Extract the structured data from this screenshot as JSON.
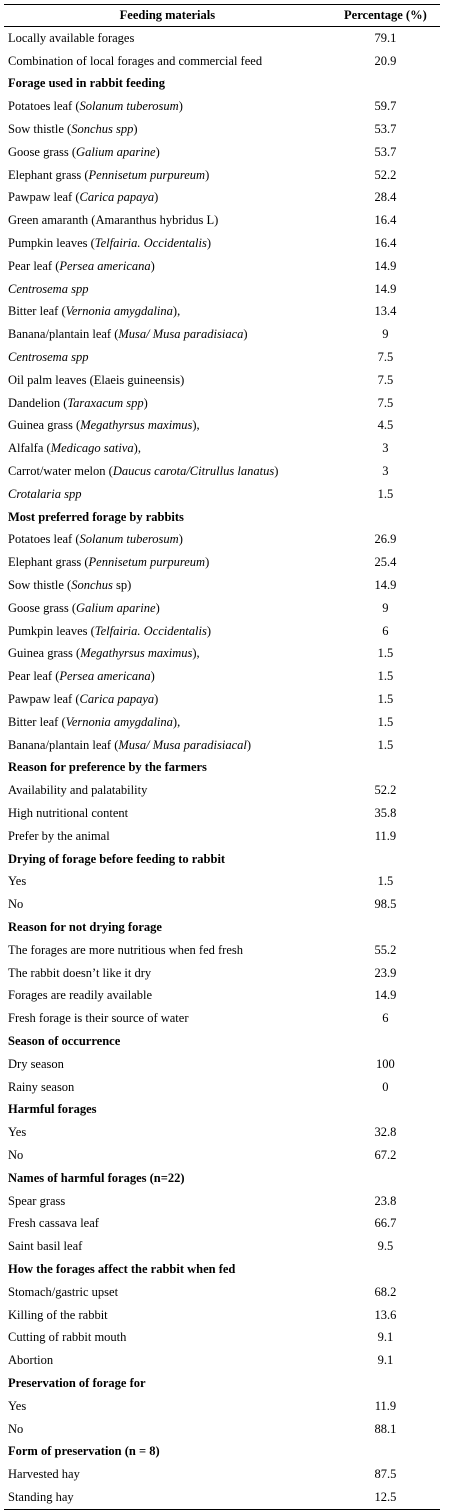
{
  "table": {
    "headers": [
      "Feeding materials",
      "Percentage (%)"
    ],
    "rows": [
      {
        "type": "item",
        "parts": [
          {
            "t": "Locally available forages"
          }
        ],
        "value": "79.1"
      },
      {
        "type": "item",
        "parts": [
          {
            "t": "Combination of local forages and commercial feed"
          }
        ],
        "value": "20.9"
      },
      {
        "type": "section",
        "parts": [
          {
            "t": "Forage used in rabbit feeding"
          }
        ],
        "value": ""
      },
      {
        "type": "item",
        "parts": [
          {
            "t": "Potatoes leaf ("
          },
          {
            "t": "Solanum tuberosum",
            "i": true
          },
          {
            "t": ")"
          }
        ],
        "value": "59.7"
      },
      {
        "type": "item",
        "parts": [
          {
            "t": "Sow thistle ("
          },
          {
            "t": "Sonchus spp",
            "i": true
          },
          {
            "t": ")"
          }
        ],
        "value": "53.7"
      },
      {
        "type": "item",
        "parts": [
          {
            "t": "Goose grass ("
          },
          {
            "t": "Galium aparine",
            "i": true
          },
          {
            "t": ")"
          }
        ],
        "value": "53.7"
      },
      {
        "type": "item",
        "parts": [
          {
            "t": "Elephant grass ("
          },
          {
            "t": "Pennisetum purpureum",
            "i": true
          },
          {
            "t": ")"
          }
        ],
        "value": "52.2"
      },
      {
        "type": "item",
        "parts": [
          {
            "t": "Pawpaw leaf ("
          },
          {
            "t": "Carica papaya",
            "i": true
          },
          {
            "t": ")"
          }
        ],
        "value": "28.4"
      },
      {
        "type": "item",
        "parts": [
          {
            "t": "Green amaranth (Amaranthus hybridus L)"
          }
        ],
        "value": "16.4"
      },
      {
        "type": "item",
        "parts": [
          {
            "t": "Pumpkin leaves ("
          },
          {
            "t": "Telfairia. Occidentalis",
            "i": true
          },
          {
            "t": ")"
          }
        ],
        "value": "16.4"
      },
      {
        "type": "item",
        "parts": [
          {
            "t": "Pear leaf ("
          },
          {
            "t": "Persea americana",
            "i": true
          },
          {
            "t": ")"
          }
        ],
        "value": "14.9"
      },
      {
        "type": "item",
        "parts": [
          {
            "t": "Centrosema spp",
            "i": true
          }
        ],
        "value": "14.9"
      },
      {
        "type": "item",
        "parts": [
          {
            "t": "Bitter leaf ("
          },
          {
            "t": "Vernonia amygdalina",
            "i": true
          },
          {
            "t": "),"
          }
        ],
        "value": "13.4"
      },
      {
        "type": "item",
        "parts": [
          {
            "t": "Banana/plantain leaf ("
          },
          {
            "t": "Musa/ Musa paradisiaca",
            "i": true
          },
          {
            "t": ")"
          }
        ],
        "value": "9"
      },
      {
        "type": "item",
        "parts": [
          {
            "t": "Centrosema spp",
            "i": true
          }
        ],
        "value": "7.5"
      },
      {
        "type": "item",
        "parts": [
          {
            "t": "Oil palm leaves (Elaeis guineensis)"
          }
        ],
        "value": "7.5"
      },
      {
        "type": "item",
        "parts": [
          {
            "t": "Dandelion ("
          },
          {
            "t": "Taraxacum spp",
            "i": true
          },
          {
            "t": ")"
          }
        ],
        "value": "7.5"
      },
      {
        "type": "item",
        "parts": [
          {
            "t": "Guinea grass ("
          },
          {
            "t": "Megathyrsus maximus",
            "i": true
          },
          {
            "t": "),"
          }
        ],
        "value": "4.5"
      },
      {
        "type": "item",
        "parts": [
          {
            "t": "Alfalfa ("
          },
          {
            "t": "Medicago sativa",
            "i": true
          },
          {
            "t": "),"
          }
        ],
        "value": "3"
      },
      {
        "type": "item",
        "parts": [
          {
            "t": "Carrot/water melon ("
          },
          {
            "t": "Daucus carota/Citrullus lanatus",
            "i": true
          },
          {
            "t": ")"
          }
        ],
        "value": "3"
      },
      {
        "type": "item",
        "parts": [
          {
            "t": "Crotalaria spp",
            "i": true
          }
        ],
        "value": "1.5"
      },
      {
        "type": "section",
        "parts": [
          {
            "t": "Most preferred forage by rabbits"
          }
        ],
        "value": ""
      },
      {
        "type": "item",
        "parts": [
          {
            "t": "Potatoes leaf ("
          },
          {
            "t": "Solanum tuberosum",
            "i": true
          },
          {
            "t": ")"
          }
        ],
        "value": "26.9"
      },
      {
        "type": "item",
        "parts": [
          {
            "t": "Elephant grass ("
          },
          {
            "t": "Pennisetum purpureum",
            "i": true
          },
          {
            "t": ")"
          }
        ],
        "value": "25.4"
      },
      {
        "type": "item",
        "parts": [
          {
            "t": "Sow thistle ("
          },
          {
            "t": "Sonchus",
            "i": true
          },
          {
            "t": " sp)"
          }
        ],
        "value": "14.9"
      },
      {
        "type": "item",
        "parts": [
          {
            "t": "Goose grass ("
          },
          {
            "t": "Galium aparine",
            "i": true
          },
          {
            "t": ")"
          }
        ],
        "value": "9"
      },
      {
        "type": "item",
        "parts": [
          {
            "t": "Pumkpin leaves ("
          },
          {
            "t": "Telfairia. Occidentalis",
            "i": true
          },
          {
            "t": ")"
          }
        ],
        "value": "6"
      },
      {
        "type": "item",
        "parts": [
          {
            "t": "Guinea grass ("
          },
          {
            "t": "Megathyrsus maximus",
            "i": true
          },
          {
            "t": "),"
          }
        ],
        "value": "1.5"
      },
      {
        "type": "item",
        "parts": [
          {
            "t": "Pear leaf ("
          },
          {
            "t": "Persea americana",
            "i": true
          },
          {
            "t": ")"
          }
        ],
        "value": "1.5"
      },
      {
        "type": "item",
        "parts": [
          {
            "t": "Pawpaw leaf ("
          },
          {
            "t": "Carica papaya",
            "i": true
          },
          {
            "t": ")"
          }
        ],
        "value": "1.5"
      },
      {
        "type": "item",
        "parts": [
          {
            "t": "Bitter leaf ("
          },
          {
            "t": "Vernonia amygdalina",
            "i": true
          },
          {
            "t": "),"
          }
        ],
        "value": "1.5"
      },
      {
        "type": "item",
        "parts": [
          {
            "t": "Banana/plantain leaf ("
          },
          {
            "t": "Musa/ Musa paradisiacal",
            "i": true
          },
          {
            "t": ")"
          }
        ],
        "value": "1.5"
      },
      {
        "type": "section",
        "parts": [
          {
            "t": "Reason for preference by the farmers"
          }
        ],
        "value": ""
      },
      {
        "type": "item",
        "parts": [
          {
            "t": "Availability and palatability"
          }
        ],
        "value": "52.2"
      },
      {
        "type": "item",
        "parts": [
          {
            "t": "High nutritional content"
          }
        ],
        "value": "35.8"
      },
      {
        "type": "item",
        "parts": [
          {
            "t": "Prefer by the animal"
          }
        ],
        "value": "11.9"
      },
      {
        "type": "section",
        "parts": [
          {
            "t": "Drying of forage before feeding to rabbit"
          }
        ],
        "value": ""
      },
      {
        "type": "item",
        "parts": [
          {
            "t": "Yes"
          }
        ],
        "value": "1.5"
      },
      {
        "type": "item",
        "parts": [
          {
            "t": "No"
          }
        ],
        "value": "98.5"
      },
      {
        "type": "section",
        "parts": [
          {
            "t": "Reason for not drying forage"
          }
        ],
        "value": ""
      },
      {
        "type": "item",
        "parts": [
          {
            "t": "The forages are more nutritious when fed fresh"
          }
        ],
        "value": "55.2"
      },
      {
        "type": "item",
        "parts": [
          {
            "t": "The rabbit doesn’t like it dry"
          }
        ],
        "value": "23.9"
      },
      {
        "type": "item",
        "parts": [
          {
            "t": "Forages are readily available"
          }
        ],
        "value": "14.9"
      },
      {
        "type": "item",
        "parts": [
          {
            "t": "Fresh forage is their source of water"
          }
        ],
        "value": "6"
      },
      {
        "type": "section",
        "parts": [
          {
            "t": "Season of occurrence"
          }
        ],
        "value": ""
      },
      {
        "type": "item",
        "parts": [
          {
            "t": "Dry season"
          }
        ],
        "value": "100"
      },
      {
        "type": "item",
        "parts": [
          {
            "t": "Rainy season"
          }
        ],
        "value": "0"
      },
      {
        "type": "section",
        "parts": [
          {
            "t": "Harmful forages"
          }
        ],
        "value": ""
      },
      {
        "type": "item",
        "parts": [
          {
            "t": "Yes"
          }
        ],
        "value": "32.8"
      },
      {
        "type": "item",
        "parts": [
          {
            "t": "No"
          }
        ],
        "value": "67.2"
      },
      {
        "type": "section",
        "parts": [
          {
            "t": "Names of harmful forages (n=22)"
          }
        ],
        "value": ""
      },
      {
        "type": "item",
        "parts": [
          {
            "t": "Spear grass"
          }
        ],
        "value": "23.8"
      },
      {
        "type": "item",
        "parts": [
          {
            "t": "Fresh cassava leaf"
          }
        ],
        "value": "66.7"
      },
      {
        "type": "item",
        "parts": [
          {
            "t": "Saint basil leaf"
          }
        ],
        "value": "9.5"
      },
      {
        "type": "section",
        "parts": [
          {
            "t": "How the forages affect the rabbit when fed"
          }
        ],
        "value": ""
      },
      {
        "type": "item",
        "parts": [
          {
            "t": "Stomach/gastric upset"
          }
        ],
        "value": "68.2"
      },
      {
        "type": "item",
        "parts": [
          {
            "t": "Killing of the rabbit"
          }
        ],
        "value": "13.6"
      },
      {
        "type": "item",
        "parts": [
          {
            "t": "Cutting of rabbit mouth"
          }
        ],
        "value": "9.1"
      },
      {
        "type": "item",
        "parts": [
          {
            "t": "Abortion"
          }
        ],
        "value": "9.1"
      },
      {
        "type": "section",
        "parts": [
          {
            "t": "Preservation of forage for"
          }
        ],
        "value": ""
      },
      {
        "type": "item",
        "parts": [
          {
            "t": "Yes"
          }
        ],
        "value": "11.9"
      },
      {
        "type": "item",
        "parts": [
          {
            "t": "No"
          }
        ],
        "value": "88.1"
      },
      {
        "type": "section",
        "parts": [
          {
            "t": "Form of preservation (n = 8)"
          }
        ],
        "value": ""
      },
      {
        "type": "item",
        "parts": [
          {
            "t": "Harvested hay"
          }
        ],
        "value": "87.5"
      },
      {
        "type": "item",
        "parts": [
          {
            "t": "Standing hay"
          }
        ],
        "value": "12.5"
      }
    ]
  }
}
